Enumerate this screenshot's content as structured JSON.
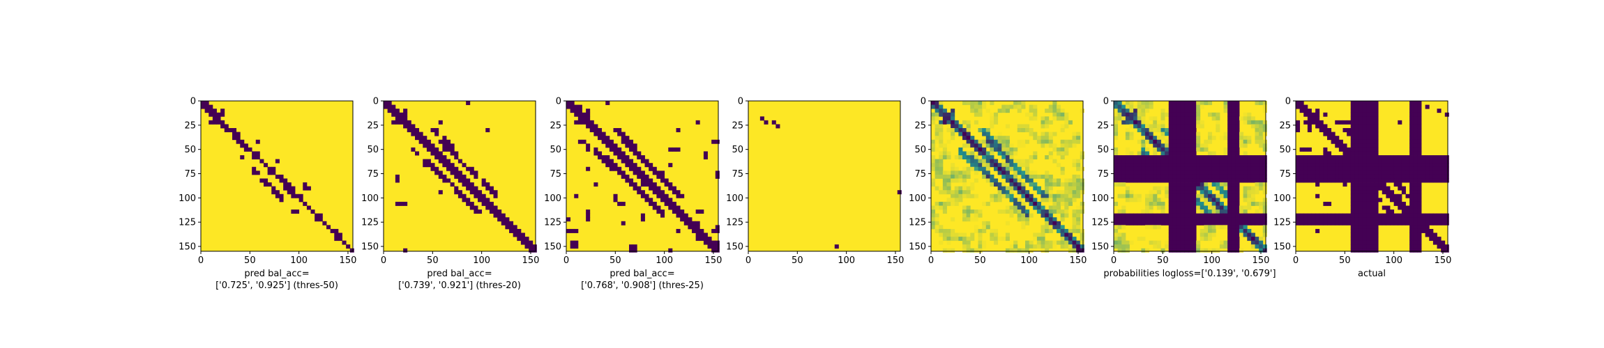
{
  "figure": {
    "background": "#ffffff",
    "colormap": {
      "low": "#440154",
      "mid": "#21918c",
      "high": "#fde725"
    }
  },
  "chart_data": [
    {
      "type": "heatmap",
      "panel": "binary-prediction-thres-50",
      "xlim": [
        0,
        155
      ],
      "ylim": [
        155,
        0
      ],
      "xticks": [
        "0",
        "50",
        "100",
        "150"
      ],
      "yticks": [
        "0",
        "25",
        "50",
        "75",
        "100",
        "125",
        "150"
      ],
      "xlabel_lines": [
        "pred bal_acc=",
        "['0.725', '0.925'] (thres-50)"
      ],
      "balanced_accuracy": [
        0.725,
        0.925
      ],
      "threshold": 50
    },
    {
      "type": "heatmap",
      "panel": "binary-prediction-thres-20",
      "xlim": [
        0,
        155
      ],
      "ylim": [
        155,
        0
      ],
      "xticks": [
        "0",
        "50",
        "100",
        "150"
      ],
      "yticks": [
        "0",
        "25",
        "50",
        "75",
        "100",
        "125",
        "150"
      ],
      "xlabel_lines": [
        "pred bal_acc=",
        "['0.739', '0.921'] (thres-20)"
      ],
      "balanced_accuracy": [
        0.739,
        0.921
      ],
      "threshold": 20
    },
    {
      "type": "heatmap",
      "panel": "binary-prediction-thres-25",
      "xlim": [
        0,
        155
      ],
      "ylim": [
        155,
        0
      ],
      "xticks": [
        "0",
        "50",
        "100",
        "150"
      ],
      "yticks": [
        "0",
        "25",
        "50",
        "75",
        "100",
        "125",
        "150"
      ],
      "xlabel_lines": [
        "pred bal_acc=",
        "['0.768', '0.908'] (thres-25)"
      ],
      "balanced_accuracy": [
        0.768,
        0.908
      ],
      "threshold": 25
    },
    {
      "type": "heatmap",
      "panel": "sparse-line-map",
      "xlim": [
        0,
        155
      ],
      "ylim": [
        155,
        0
      ],
      "xticks": [
        "0",
        "50",
        "100",
        "150"
      ],
      "yticks": [
        "0",
        "25",
        "50",
        "75",
        "100",
        "125",
        "150"
      ],
      "xlabel_lines": []
    },
    {
      "type": "heatmap",
      "panel": "continuous-probability-map",
      "xlim": [
        0,
        155
      ],
      "ylim": [
        155,
        0
      ],
      "xticks": [
        "0",
        "50",
        "100",
        "150"
      ],
      "yticks": [
        "0",
        "25",
        "50",
        "75",
        "100",
        "125",
        "150"
      ],
      "xlabel_lines": []
    },
    {
      "type": "heatmap",
      "panel": "probabilities-masked",
      "xlim": [
        0,
        155
      ],
      "ylim": [
        155,
        0
      ],
      "xticks": [
        "0",
        "50",
        "100",
        "150"
      ],
      "yticks": [
        "0",
        "25",
        "50",
        "75",
        "100",
        "125",
        "150"
      ],
      "xlabel_lines": [
        "probabilities logloss=['0.139', '0.679']"
      ],
      "logloss": [
        0.139,
        0.679
      ],
      "masked_rows": [
        [
          57,
          81
        ],
        [
          116,
          127
        ]
      ],
      "masked_cols": [
        [
          57,
          81
        ],
        [
          116,
          127
        ]
      ]
    },
    {
      "type": "heatmap",
      "panel": "actual-contact-map",
      "xlim": [
        0,
        155
      ],
      "ylim": [
        155,
        0
      ],
      "xticks": [
        "0",
        "50",
        "100",
        "150"
      ],
      "yticks": [
        "0",
        "25",
        "50",
        "75",
        "100",
        "125",
        "150"
      ],
      "xlabel_lines": [
        "actual"
      ],
      "masked_rows": [
        [
          57,
          81
        ],
        [
          116,
          127
        ]
      ],
      "masked_cols": [
        [
          57,
          81
        ],
        [
          116,
          127
        ]
      ]
    }
  ]
}
